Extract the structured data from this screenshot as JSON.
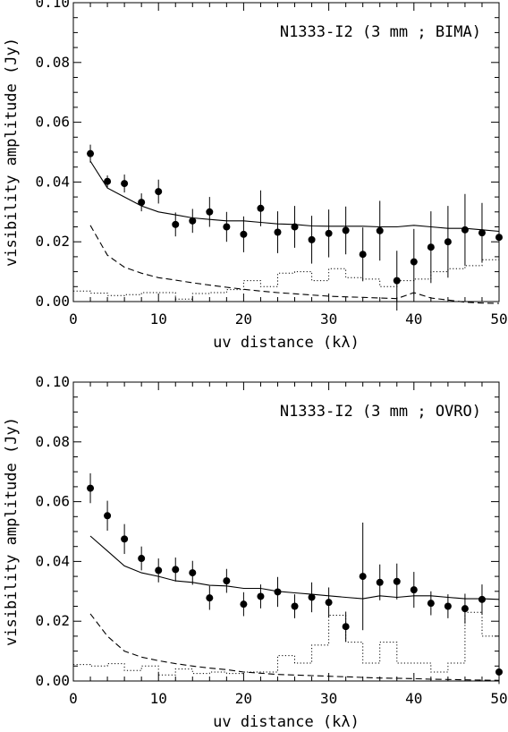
{
  "chart_data": [
    {
      "type": "scatter",
      "title": "N1333-I2 (3 mm ; BIMA)",
      "xlabel": "uv distance (kλ)",
      "ylabel": "visibility amplitude (Jy)",
      "xlim": [
        0,
        50
      ],
      "ylim": [
        0,
        0.1
      ],
      "xticks": [
        "0",
        "10",
        "20",
        "30",
        "40",
        "50"
      ],
      "yticks": [
        "0.00",
        "0.02",
        "0.04",
        "0.06",
        "0.08",
        "0.10"
      ],
      "series": [
        {
          "style": "points-with-errorbars",
          "x": [
            2,
            4,
            6,
            8,
            10,
            12,
            14,
            16,
            18,
            20,
            22,
            24,
            26,
            28,
            30,
            32,
            34,
            36,
            38,
            40,
            42,
            44,
            46,
            48,
            50
          ],
          "y": [
            0.0495,
            0.0402,
            0.0395,
            0.0332,
            0.0368,
            0.0258,
            0.027,
            0.03,
            0.025,
            0.0225,
            0.0312,
            0.0232,
            0.025,
            0.0207,
            0.0228,
            0.0238,
            0.0158,
            0.0237,
            0.007,
            0.0133,
            0.0182,
            0.02,
            0.024,
            0.023,
            0.0215
          ],
          "err": [
            0.003,
            0.002,
            0.003,
            0.003,
            0.004,
            0.004,
            0.004,
            0.005,
            0.005,
            0.006,
            0.006,
            0.007,
            0.007,
            0.008,
            0.008,
            0.008,
            0.009,
            0.01,
            0.01,
            0.011,
            0.012,
            0.012,
            0.012,
            0.01,
            0.01
          ]
        },
        {
          "style": "solid",
          "x": [
            2,
            4,
            6,
            8,
            10,
            12,
            14,
            16,
            18,
            20,
            22,
            24,
            26,
            28,
            30,
            32,
            34,
            36,
            38,
            40,
            42,
            44,
            46,
            48,
            50
          ],
          "y": [
            0.047,
            0.038,
            0.035,
            0.032,
            0.03,
            0.029,
            0.028,
            0.0275,
            0.027,
            0.027,
            0.0265,
            0.026,
            0.0258,
            0.0253,
            0.0252,
            0.0252,
            0.0252,
            0.025,
            0.025,
            0.0255,
            0.025,
            0.0245,
            0.0245,
            0.024,
            0.0235
          ]
        },
        {
          "style": "dashed",
          "x": [
            2,
            4,
            6,
            8,
            10,
            12,
            14,
            16,
            18,
            20,
            22,
            24,
            26,
            28,
            30,
            32,
            34,
            36,
            38,
            40,
            42,
            44,
            46,
            48,
            50
          ],
          "y": [
            0.0255,
            0.0155,
            0.0115,
            0.0095,
            0.008,
            0.0072,
            0.0063,
            0.0055,
            0.0048,
            0.0041,
            0.0035,
            0.003,
            0.0026,
            0.0022,
            0.0018,
            0.0016,
            0.0014,
            0.0012,
            0.001,
            0.003,
            0.0012,
            0.0005,
            -0.0002,
            -0.0005,
            -0.0006
          ]
        },
        {
          "style": "dotted-steps",
          "x": [
            1,
            3,
            5,
            7,
            9,
            11,
            13,
            15,
            17,
            19,
            21,
            23,
            25,
            27,
            29,
            31,
            33,
            35,
            37,
            39,
            41,
            43,
            45,
            47,
            49
          ],
          "y": [
            0.0035,
            0.0028,
            0.002,
            0.0023,
            0.003,
            0.003,
            0.0008,
            0.0027,
            0.003,
            0.004,
            0.007,
            0.005,
            0.0095,
            0.01,
            0.007,
            0.011,
            0.008,
            0.0075,
            0.005,
            0.007,
            0.0075,
            0.01,
            0.011,
            0.012,
            0.014
          ]
        }
      ]
    },
    {
      "type": "scatter",
      "title": "N1333-I2 (3 mm ; OVRO)",
      "xlabel": "uv distance (kλ)",
      "ylabel": "visibility amplitude (Jy)",
      "xlim": [
        0,
        50
      ],
      "ylim": [
        0,
        0.1
      ],
      "xticks": [
        "0",
        "10",
        "20",
        "30",
        "40",
        "50"
      ],
      "yticks": [
        "0.00",
        "0.02",
        "0.04",
        "0.06",
        "0.08",
        "0.10"
      ],
      "series": [
        {
          "style": "points-with-errorbars",
          "x": [
            2,
            4,
            6,
            8,
            10,
            12,
            14,
            16,
            18,
            20,
            22,
            24,
            26,
            28,
            30,
            32,
            34,
            36,
            38,
            40,
            42,
            44,
            46,
            48,
            50
          ],
          "y": [
            0.0645,
            0.0553,
            0.0475,
            0.041,
            0.037,
            0.0373,
            0.0362,
            0.0278,
            0.0335,
            0.0257,
            0.0283,
            0.0298,
            0.025,
            0.028,
            0.0263,
            0.0182,
            0.035,
            0.033,
            0.0333,
            0.0305,
            0.026,
            0.025,
            0.0242,
            0.0273,
            0.003
          ],
          "err": [
            0.005,
            0.005,
            0.005,
            0.004,
            0.004,
            0.004,
            0.004,
            0.004,
            0.004,
            0.004,
            0.004,
            0.005,
            0.004,
            0.005,
            0.005,
            0.005,
            0.018,
            0.006,
            0.006,
            0.006,
            0.004,
            0.004,
            0.005,
            0.005,
            0.004
          ]
        },
        {
          "style": "solid",
          "x": [
            2,
            4,
            6,
            8,
            10,
            12,
            14,
            16,
            18,
            20,
            22,
            24,
            26,
            28,
            30,
            32,
            34,
            36,
            38,
            40,
            42,
            44,
            46,
            48,
            50
          ],
          "y": [
            0.0485,
            0.0435,
            0.0385,
            0.0362,
            0.035,
            0.0335,
            0.033,
            0.032,
            0.0318,
            0.031,
            0.031,
            0.03,
            0.0295,
            0.029,
            0.0285,
            0.028,
            0.0275,
            0.0285,
            0.028,
            0.0285,
            0.0285,
            0.028,
            0.0275,
            0.0275,
            0.0273
          ]
        },
        {
          "style": "dashed",
          "x": [
            2,
            4,
            6,
            8,
            10,
            12,
            14,
            16,
            18,
            20,
            22,
            24,
            26,
            28,
            30,
            32,
            34,
            36,
            38,
            40,
            42,
            44,
            46,
            48,
            50
          ],
          "y": [
            0.0225,
            0.015,
            0.01,
            0.008,
            0.0068,
            0.0058,
            0.005,
            0.0043,
            0.0038,
            0.003,
            0.0026,
            0.0022,
            0.002,
            0.0018,
            0.0016,
            0.0014,
            0.0012,
            0.001,
            0.0009,
            0.0008,
            0.0006,
            0.0005,
            0.0004,
            0.0003,
            0.0002
          ]
        },
        {
          "style": "dotted-steps",
          "x": [
            1,
            3,
            5,
            7,
            9,
            11,
            13,
            15,
            17,
            19,
            21,
            23,
            25,
            27,
            29,
            31,
            33,
            35,
            37,
            39,
            41,
            43,
            45,
            47,
            49
          ],
          "y": [
            0.0055,
            0.005,
            0.0058,
            0.0035,
            0.005,
            0.002,
            0.004,
            0.0025,
            0.003,
            0.0025,
            0.003,
            0.003,
            0.0085,
            0.006,
            0.012,
            0.022,
            0.013,
            0.006,
            0.013,
            0.006,
            0.006,
            0.003,
            0.006,
            0.023,
            0.015
          ]
        }
      ]
    }
  ]
}
